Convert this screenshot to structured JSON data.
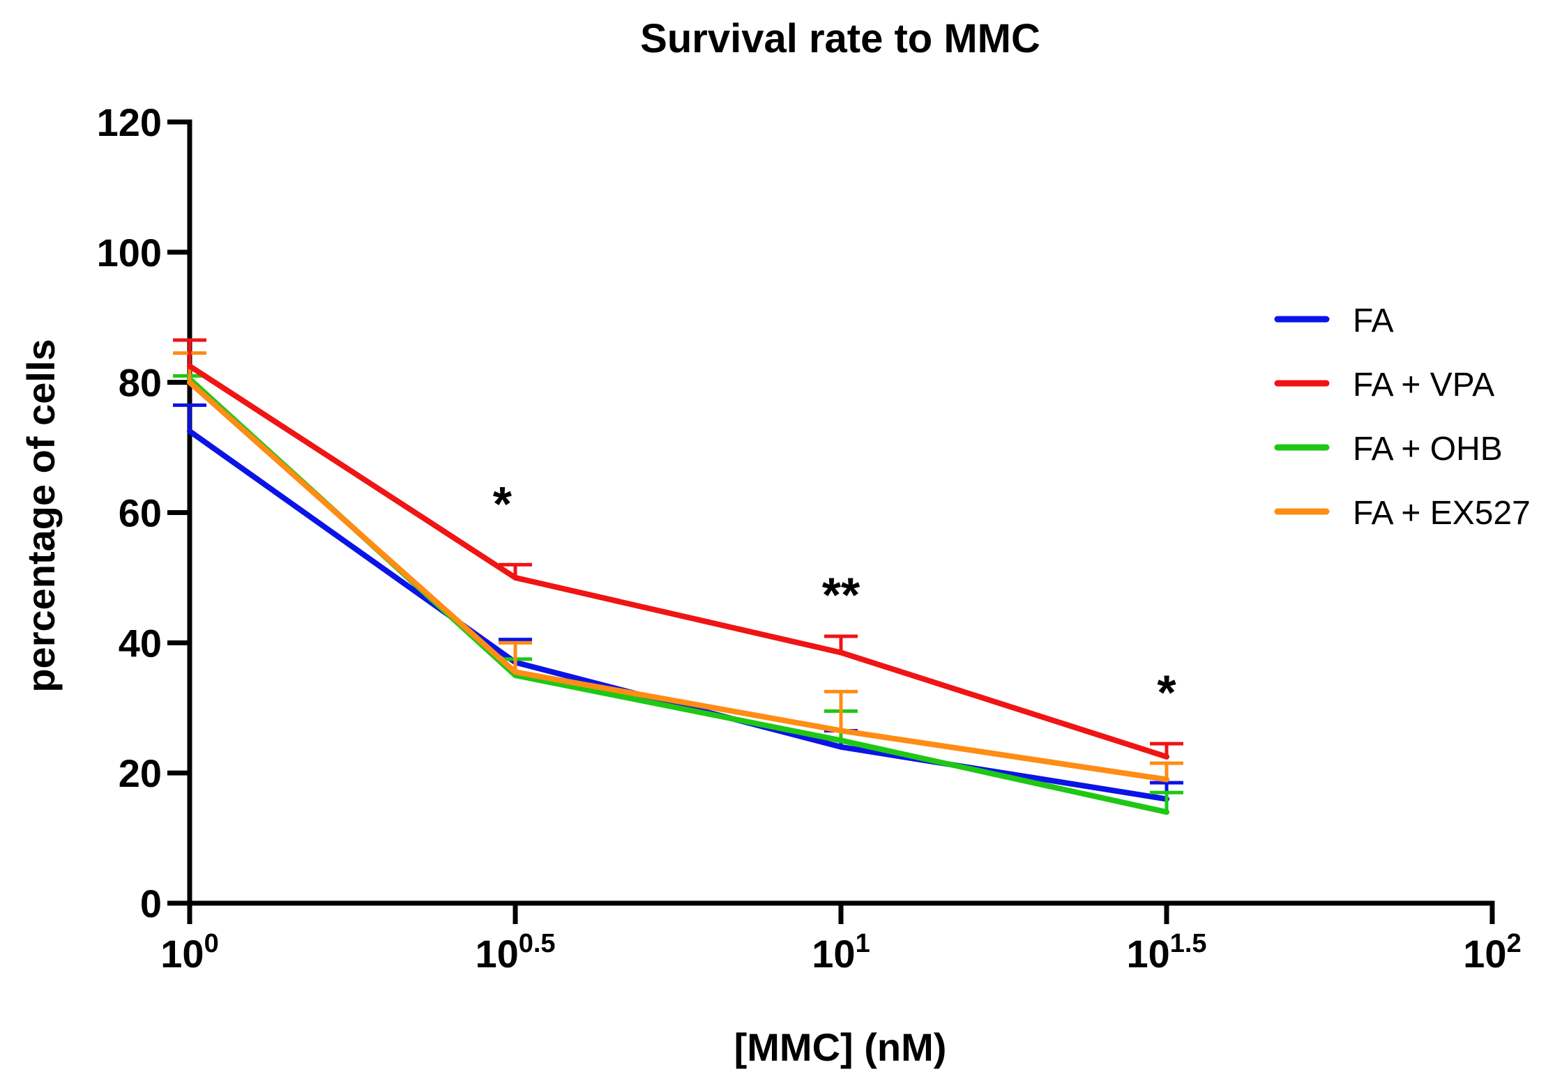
{
  "chart_data": {
    "type": "line",
    "title": "Survival rate to MMC",
    "xlabel": "[MMC] (nM)",
    "ylabel": "percentage of cells",
    "x_scale": "log10",
    "x": [
      1,
      3.16,
      10,
      31.6
    ],
    "x_exponents": [
      0,
      0.5,
      1,
      1.5
    ],
    "xlim_exponent": [
      0,
      2
    ],
    "ylim": [
      0,
      120
    ],
    "y_ticks": [
      0,
      20,
      40,
      60,
      80,
      100,
      120
    ],
    "x_ticks": [
      {
        "base": "10",
        "exp": "0",
        "value": 0
      },
      {
        "base": "10",
        "exp": "0.5",
        "value": 0.5
      },
      {
        "base": "10",
        "exp": "1",
        "value": 1
      },
      {
        "base": "10",
        "exp": "1.5",
        "value": 1.5
      },
      {
        "base": "10",
        "exp": "2",
        "value": 2
      }
    ],
    "series": [
      {
        "name": "FA",
        "color": "#0a14e6",
        "values": [
          72.5,
          37,
          24,
          16
        ],
        "error": [
          4,
          3.5,
          2.5,
          2.5
        ]
      },
      {
        "name": "FA + VPA",
        "color": "#f01414",
        "values": [
          82.5,
          50,
          38.5,
          22.5
        ],
        "error": [
          4,
          2,
          2.5,
          2
        ]
      },
      {
        "name": "FA + OHB",
        "color": "#1ec814",
        "values": [
          80.5,
          35,
          25,
          14
        ],
        "error": [
          0.5,
          2.5,
          4.5,
          3
        ]
      },
      {
        "name": "FA + EX527",
        "color": "#ff8c14",
        "values": [
          80,
          35.5,
          26.5,
          19
        ],
        "error": [
          4.5,
          4.5,
          6,
          2.5
        ]
      }
    ],
    "annotations": [
      {
        "text": "*",
        "x_exp": 0.48,
        "y": 62
      },
      {
        "text": "**",
        "x_exp": 1.0,
        "y": 48
      },
      {
        "text": "*",
        "x_exp": 1.5,
        "y": 33
      }
    ],
    "legend_position": "right"
  }
}
